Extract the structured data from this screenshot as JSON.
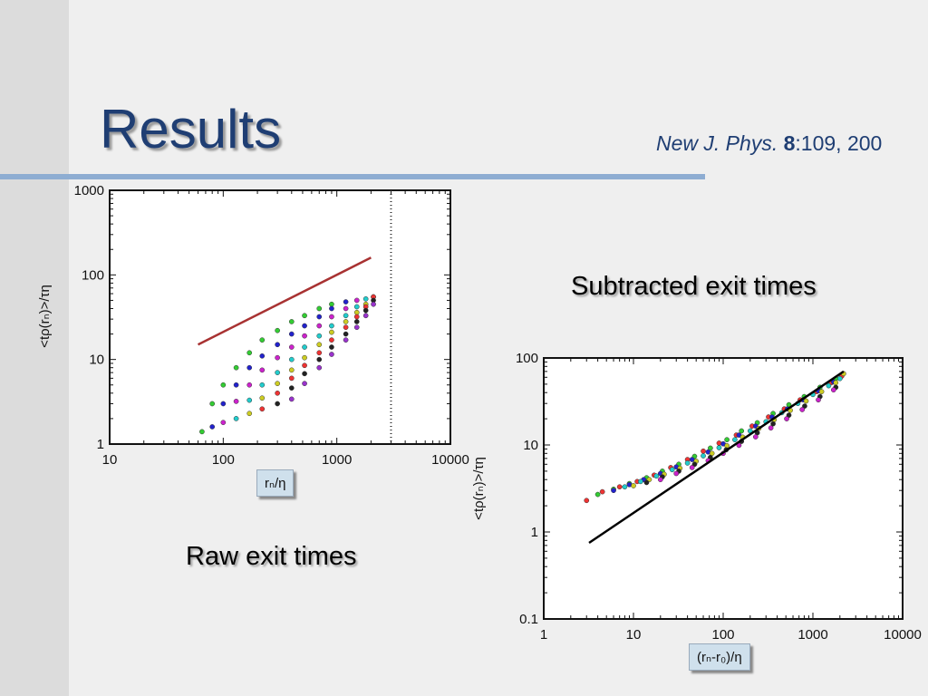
{
  "slide": {
    "title": "Results",
    "citation": {
      "journal": "New J. Phys. ",
      "volume": "8",
      "rest": ":109, 200"
    },
    "caption_left": "Raw exit times",
    "caption_right": "Subtracted exit times"
  },
  "chart_data": [
    {
      "type": "scatter",
      "title": "",
      "xlabel": "rₙ/η",
      "ylabel": "<tρ(rₙ)>/τη",
      "xscale": "log",
      "yscale": "log",
      "xlim": [
        10,
        10000
      ],
      "ylim": [
        1,
        1000
      ],
      "xticks": [
        "10",
        "100",
        "1000",
        "10000"
      ],
      "yticks": [
        "1",
        "10",
        "100",
        "1000"
      ],
      "reference_line": {
        "x": [
          60,
          2000
        ],
        "y": [
          15,
          160
        ],
        "color": "#a83232"
      },
      "vline": {
        "x": 3000,
        "style": "dotted"
      },
      "series": [
        {
          "x": [
            65,
            80,
            100,
            130,
            170,
            220,
            300,
            400,
            520,
            700,
            900
          ],
          "y": [
            1.4,
            3,
            5,
            8,
            12,
            17,
            22,
            28,
            33,
            40,
            45
          ],
          "color": "#33cc33"
        },
        {
          "x": [
            80,
            100,
            130,
            170,
            220,
            300,
            400,
            520,
            700,
            900,
            1200
          ],
          "y": [
            1.6,
            3,
            5,
            8,
            11,
            15,
            20,
            25,
            32,
            40,
            48
          ],
          "color": "#2222cc"
        },
        {
          "x": [
            100,
            130,
            170,
            220,
            300,
            400,
            520,
            700,
            900,
            1200,
            1500
          ],
          "y": [
            1.8,
            3.2,
            5,
            7.5,
            10.5,
            14,
            19,
            25,
            32,
            40,
            50
          ],
          "color": "#cc22cc"
        },
        {
          "x": [
            130,
            170,
            220,
            300,
            400,
            520,
            700,
            900,
            1200,
            1500,
            1800
          ],
          "y": [
            2,
            3.3,
            5,
            7,
            10,
            14,
            19,
            25,
            33,
            42,
            52
          ],
          "color": "#22cccc"
        },
        {
          "x": [
            170,
            220,
            300,
            400,
            520,
            700,
            900,
            1200,
            1500,
            1800,
            2100
          ],
          "y": [
            2.3,
            3.5,
            5.2,
            7.5,
            10.5,
            15,
            21,
            28,
            36,
            45,
            55
          ],
          "color": "#cccc22"
        },
        {
          "x": [
            220,
            300,
            400,
            520,
            700,
            900,
            1200,
            1500,
            1800,
            2100
          ],
          "y": [
            2.6,
            4,
            6,
            8.5,
            12,
            17,
            24,
            32,
            42,
            55
          ],
          "color": "#ee3333"
        },
        {
          "x": [
            300,
            400,
            520,
            700,
            900,
            1200,
            1500,
            1800,
            2100
          ],
          "y": [
            3,
            4.6,
            6.8,
            10,
            14,
            20,
            28,
            38,
            50
          ],
          "color": "#222222"
        },
        {
          "x": [
            400,
            520,
            700,
            900,
            1200,
            1500,
            1800,
            2100
          ],
          "y": [
            3.4,
            5.2,
            8,
            11.5,
            17,
            24,
            33,
            45
          ],
          "color": "#9933cc"
        }
      ]
    },
    {
      "type": "scatter",
      "title": "",
      "xlabel": "(rₙ-r₀)/η",
      "ylabel": "<tρ(rₙ)>/τη",
      "xscale": "log",
      "yscale": "log",
      "xlim": [
        1,
        10000
      ],
      "ylim": [
        0.1,
        100
      ],
      "xticks": [
        "1",
        "10",
        "100",
        "1000",
        "10000"
      ],
      "yticks": [
        "0.1",
        "1",
        "10",
        "100"
      ],
      "reference_line": {
        "x": [
          3.2,
          2200
        ],
        "y": [
          0.75,
          70
        ],
        "color": "#000000"
      },
      "series": [
        {
          "x": [
            3,
            4.5,
            7,
            11,
            17,
            26,
            40,
            60,
            90,
            140,
            210,
            320,
            480,
            720,
            1100,
            1600,
            2100
          ],
          "y": [
            2.3,
            2.9,
            3.3,
            3.8,
            4.5,
            5.5,
            6.8,
            8.5,
            10.5,
            13,
            16.5,
            21,
            26,
            33,
            41,
            52,
            62
          ],
          "color": "#ee3333"
        },
        {
          "x": [
            4,
            6,
            9,
            14,
            21,
            32,
            48,
            72,
            110,
            160,
            240,
            360,
            540,
            800,
            1200,
            1800
          ],
          "y": [
            2.7,
            3.1,
            3.6,
            4.2,
            5,
            6,
            7.4,
            9.2,
            11.5,
            14.5,
            18,
            23,
            29,
            36,
            46,
            58
          ],
          "color": "#33cc33"
        },
        {
          "x": [
            6,
            9,
            13,
            20,
            30,
            45,
            68,
            100,
            150,
            230,
            350,
            520,
            780,
            1150,
            1700
          ],
          "y": [
            3,
            3.5,
            4,
            4.7,
            5.6,
            6.8,
            8.3,
            10.3,
            13,
            16.5,
            21,
            26,
            33,
            42,
            53
          ],
          "color": "#2222cc"
        },
        {
          "x": [
            8,
            12,
            18,
            27,
            40,
            60,
            90,
            135,
            200,
            300,
            450,
            680,
            1000,
            1500,
            2000
          ],
          "y": [
            3.3,
            3.8,
            4.4,
            5.2,
            6.2,
            7.5,
            9.3,
            11.5,
            14.5,
            18.5,
            23.5,
            30,
            38,
            48,
            58
          ],
          "color": "#22cccc"
        },
        {
          "x": [
            10,
            15,
            22,
            33,
            50,
            75,
            110,
            165,
            250,
            370,
            560,
            840,
            1250,
            1800,
            2200
          ],
          "y": [
            3.4,
            4,
            4.6,
            5.4,
            6.5,
            8,
            9.8,
            12.3,
            15.5,
            19.5,
            25,
            32,
            41,
            52,
            66
          ],
          "color": "#cccc22"
        },
        {
          "x": [
            14,
            21,
            32,
            48,
            72,
            108,
            160,
            240,
            360,
            540,
            810,
            1200,
            1800
          ],
          "y": [
            3.7,
            4.3,
            5,
            6,
            7.2,
            8.8,
            11,
            13.8,
            17.5,
            22,
            28,
            36,
            46
          ],
          "color": "#222222"
        },
        {
          "x": [
            20,
            30,
            45,
            68,
            100,
            150,
            230,
            340,
            510,
            760,
            1150,
            1700
          ],
          "y": [
            4,
            4.7,
            5.5,
            6.6,
            8,
            9.9,
            12.4,
            15.7,
            20,
            25.5,
            33,
            43
          ],
          "color": "#cc22cc"
        }
      ]
    }
  ]
}
